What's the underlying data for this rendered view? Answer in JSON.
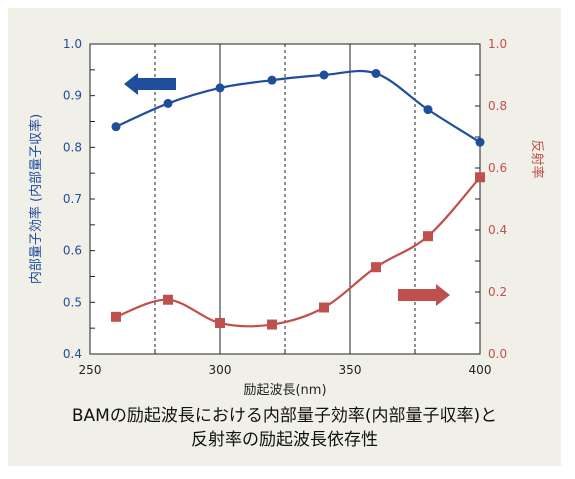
{
  "chart_data": {
    "type": "line",
    "xlabel": "励起波長(nm)",
    "xlim": [
      250,
      400
    ],
    "x_ticks": [
      "250",
      "300",
      "350",
      "400"
    ],
    "y_left": {
      "label": "内部量子効率 (内部量子収率)",
      "lim": [
        0.4,
        1.0
      ],
      "ticks": [
        "0.4",
        "0.5",
        "0.6",
        "0.7",
        "0.8",
        "0.9",
        "1.0"
      ]
    },
    "y_right": {
      "label": "反射率",
      "lim": [
        0.0,
        1.0
      ],
      "ticks": [
        "0.0",
        "0.2",
        "0.4",
        "0.6",
        "0.8",
        "1.0"
      ]
    },
    "series": [
      {
        "axis": "left",
        "color": "#1f4e9c",
        "marker": "circle",
        "x": [
          260,
          280,
          300,
          320,
          340,
          360,
          380,
          400
        ],
        "y": [
          0.84,
          0.885,
          0.915,
          0.93,
          0.94,
          0.943,
          0.873,
          0.81
        ]
      },
      {
        "axis": "right",
        "color": "#c0504d",
        "marker": "square",
        "x": [
          260,
          280,
          300,
          320,
          340,
          360,
          380,
          400
        ],
        "y": [
          0.12,
          0.175,
          0.1,
          0.095,
          0.15,
          0.28,
          0.38,
          0.57
        ]
      }
    ],
    "arrows": [
      {
        "points_to": "left",
        "color": "#1f4e9c"
      },
      {
        "points_to": "right",
        "color": "#c0504d"
      }
    ],
    "grid": "vertical dashed",
    "caption_lines": [
      "BAMの励起波長における内部量子効率(内部量子収率)と",
      "反射率の励起波長依存性"
    ]
  }
}
